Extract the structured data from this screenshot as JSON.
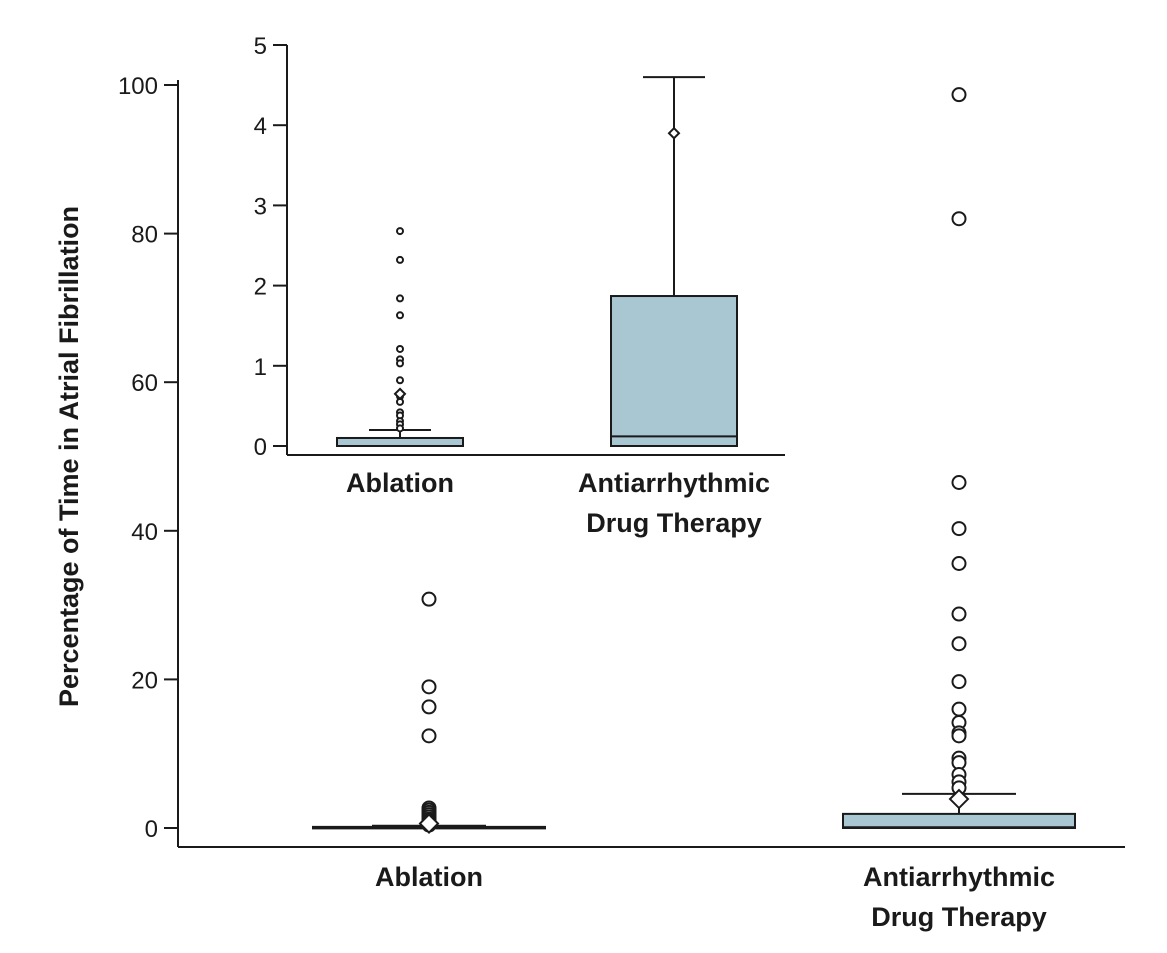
{
  "chart_data": [
    {
      "type": "box",
      "role": "main",
      "ylabel": "Percentage of Time in Atrial Fibrillation",
      "xlabel": "",
      "ylim": [
        0,
        100
      ],
      "yticks": [
        0,
        20,
        40,
        60,
        80,
        100
      ],
      "categories": [
        "Ablation",
        "Antiarrhythmic\nDrug Therapy"
      ],
      "category_lines": [
        [
          "Ablation"
        ],
        [
          "Antiarrhythmic",
          "Drug Therapy"
        ]
      ],
      "box_fill": "#a9c6d3",
      "series": [
        {
          "category": "Ablation",
          "q1": 0,
          "median": 0,
          "q3": 0.15,
          "whisker_low": 0,
          "whisker_high": 0.3,
          "mean": 0.6,
          "outliers": [
            30.8,
            19.0,
            16.3,
            12.4,
            2.7,
            2.4,
            2.1,
            1.8,
            1.5,
            1.2,
            1.0,
            0.8,
            0.6,
            0.5,
            0.4
          ]
        },
        {
          "category": "Antiarrhythmic Drug Therapy",
          "q1": 0,
          "median": 0.1,
          "q3": 1.9,
          "whisker_low": 0,
          "whisker_high": 4.6,
          "mean": 3.9,
          "outliers": [
            98.7,
            82.0,
            46.5,
            40.3,
            35.6,
            28.8,
            24.8,
            19.7,
            16.0,
            14.2,
            12.8,
            12.4,
            9.4,
            8.8,
            7.2,
            6.2,
            5.4
          ]
        }
      ]
    },
    {
      "type": "box",
      "role": "inset",
      "ylabel": "",
      "ylim": [
        0,
        5
      ],
      "yticks": [
        0,
        1,
        2,
        3,
        4,
        5
      ],
      "categories": [
        "Ablation",
        "Antiarrhythmic\nDrug Therapy"
      ],
      "category_lines": [
        [
          "Ablation"
        ],
        [
          "Antiarrhythmic",
          "Drug Therapy"
        ]
      ],
      "series": [
        {
          "category": "Ablation",
          "q1": 0,
          "median": 0,
          "q3": 0.1,
          "whisker_low": 0,
          "whisker_high": 0.2,
          "mean": 0.65,
          "outliers": [
            2.68,
            2.32,
            1.84,
            1.63,
            1.21,
            1.08,
            1.03,
            0.82,
            0.62,
            0.55,
            0.42,
            0.38,
            0.31,
            0.27,
            0.22
          ]
        },
        {
          "category": "Antiarrhythmic Drug Therapy",
          "q1": 0,
          "median": 0.12,
          "q3": 1.87,
          "whisker_low": 0,
          "whisker_high": 4.6,
          "mean": 3.9,
          "outliers": []
        }
      ]
    }
  ]
}
